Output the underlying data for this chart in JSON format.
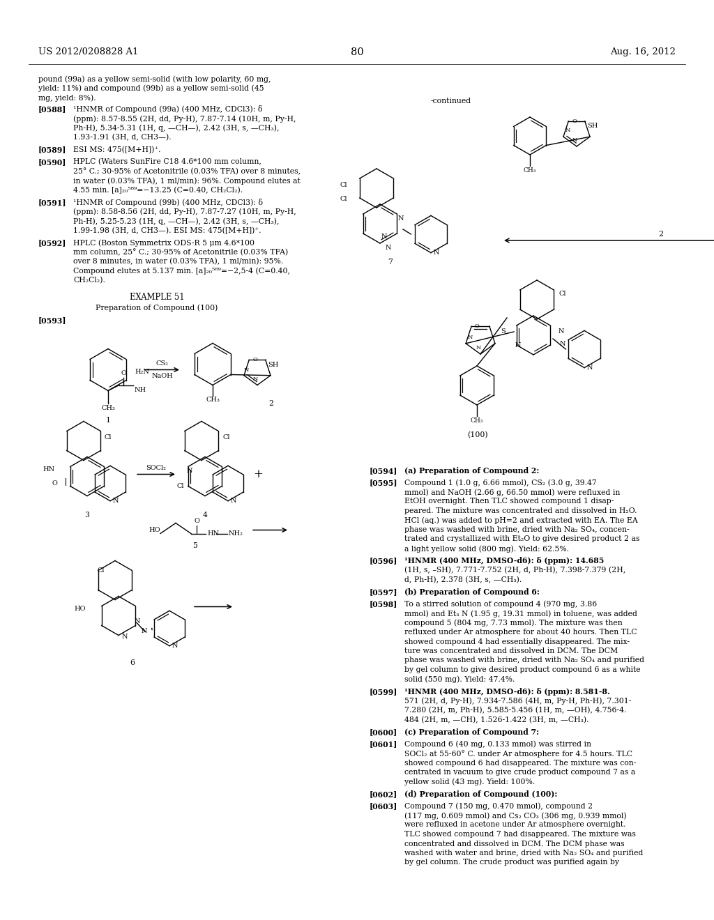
{
  "bg_color": "#ffffff",
  "header_left": "US 2012/0208828 A1",
  "header_right": "Aug. 16, 2012",
  "page_number": "80",
  "font_family": "DejaVu Serif",
  "fs_hdr": 9.5,
  "fs_body": 7.8,
  "fs_small": 7.0,
  "left_top_lines": [
    "pound (99a) as a yellow semi-solid (with low polarity, 60 mg,",
    "yield: 11%) and compound (99b) as a yellow semi-solid (45",
    "mg, yield: 8%)."
  ],
  "left_paras": [
    {
      "tag": "[0588]",
      "text": "¹HNMR of Compound (99a) (400 MHz, CDCl3): δ\n(ppm): 8.57-8.55 (2H, dd, Py-H), 7.87-7.14 (10H, m, Py-H,\nPh-H), 5.34-5.31 (1H, q, —CH—), 2.42 (3H, s, —CH₃),\n1.93-1.91 (3H, d, CH3—)."
    },
    {
      "tag": "[0589]",
      "text": "ESI MS: 475([M+H])⁺."
    },
    {
      "tag": "[0590]",
      "text": "HPLC (Waters SunFire C18 4.6*100 mm column,\n25° C.; 30-95% of Acetonitrile (0.03% TFA) over 8 minutes,\nin water (0.03% TFA), 1 ml/min): 96%. Compound elutes at\n4.55 min. [a]₂₀⁵⁸⁹=−13.25 (C=0.40, CH₂Cl₂)."
    },
    {
      "tag": "[0591]",
      "text": "¹HNMR of Compound (99b) (400 MHz, CDCl3): δ\n(ppm): 8.58-8.56 (2H, dd, Py-H), 7.87-7.27 (10H, m, Py-H,\nPh-H), 5.25-5.23 (1H, q, —CH—), 2.42 (3H, s, —CH₃),\n1.99-1.98 (3H, d, CH3—). ESI MS: 475([M+H])⁺."
    },
    {
      "tag": "[0592]",
      "text": "HPLC (Boston Symmetrix ODS-R 5 μm 4.6*100\nmm column, 25° C.; 30-95% of Acetonitrile (0.03% TFA)\nover 8 minutes, in water (0.03% TFA), 1 ml/min): 95%.\nCompound elutes at 5.137 min. [a]₂₀⁵⁸⁹=−2,5-4 (C=0.40,\nCH₂Cl₂)."
    }
  ],
  "example_title": "EXAMPLE 51",
  "example_subtitle": "Preparation of Compound (100)",
  "tag_0593": "[0593]",
  "right_paras": [
    {
      "tag": "[0594]",
      "bold": true,
      "text": "(a) Preparation of Compound 2:"
    },
    {
      "tag": "[0595]",
      "bold": false,
      "text": "Compound 1 (1.0 g, 6.66 mmol), CS₂ (3.0 g, 39.47\nmmol) and NaOH (2.66 g, 66.50 mmol) were refluxed in\nEtOH overnight. Then TLC showed compound 1 disap-\npeared. The mixture was concentrated and dissolved in H₂O.\nHCl (aq.) was added to pH=2 and extracted with EA. The EA\nphase was washed with brine, dried with Na₂ SO₄, concen-\ntrated and crystallized with Et₂O to give desired product 2 as\na light yellow solid (800 mg). Yield: 62.5%."
    },
    {
      "tag": "[0596]",
      "bold": true,
      "text": "¹HNMR (400 MHz, DMSO-d6): δ (ppm): 14.685\n(1H, s, –SH), 7.771-7.752 (2H, d, Ph-H), 7.398-7.379 (2H,\nd, Ph-H), 2.378 (3H, s, —CH₃)."
    },
    {
      "tag": "[0597]",
      "bold": true,
      "text": "(b) Preparation of Compound 6:"
    },
    {
      "tag": "[0598]",
      "bold": false,
      "text": "To a stirred solution of compound 4 (970 mg, 3.86\nmmol) and Et₃ N (1.95 g, 19.31 mmol) in toluene, was added\ncompound 5 (804 mg, 7.73 mmol). The mixture was then\nrefluxed under Ar atmosphere for about 40 hours. Then TLC\nshowed compound 4 had essentially disappeared. The mix-\nture was concentrated and dissolved in DCM. The DCM\nphase was washed with brine, dried with Na₂ SO₄ and purified\nby gel column to give desired product compound 6 as a white\nsolid (550 mg). Yield: 47.4%."
    },
    {
      "tag": "[0599]",
      "bold": true,
      "text": "¹HNMR (400 MHz, DMSO-d6): δ (ppm): 8.581-8.\n571 (2H, d, Py-H), 7.934-7.586 (4H, m, Py-H, Ph-H), 7.301-\n7.280 (2H, m, Ph-H), 5.585-5.456 (1H, m, —OH), 4.756-4.\n484 (2H, m, —CH), 1.526-1.422 (3H, m, —CH₃)."
    },
    {
      "tag": "[0600]",
      "bold": true,
      "text": "(c) Preparation of Compound 7:"
    },
    {
      "tag": "[0601]",
      "bold": false,
      "text": "Compound 6 (40 mg, 0.133 mmol) was stirred in\nSOCl₂ at 55-60° C. under Ar atmosphere for 4.5 hours. TLC\nshowed compound 6 had disappeared. The mixture was con-\ncentrated in vacuum to give crude product compound 7 as a\nyellow solid (43 mg). Yield: 100%."
    },
    {
      "tag": "[0602]",
      "bold": true,
      "text": "(d) Preparation of Compound (100):"
    },
    {
      "tag": "[0603]",
      "bold": false,
      "text": "Compound 7 (150 mg, 0.470 mmol), compound 2\n(117 mg, 0.609 mmol) and Cs₂ CO₃ (306 mg, 0.939 mmol)\nwere refluxed in acetone under Ar atmosphere overnight.\nTLC showed compound 7 had disappeared. The mixture was\nconcentrated and dissolved in DCM. The DCM phase was\nwashed with water and brine, dried with Na₂ SO₄ and purified\nby gel column. The crude product was purified again by"
    }
  ]
}
